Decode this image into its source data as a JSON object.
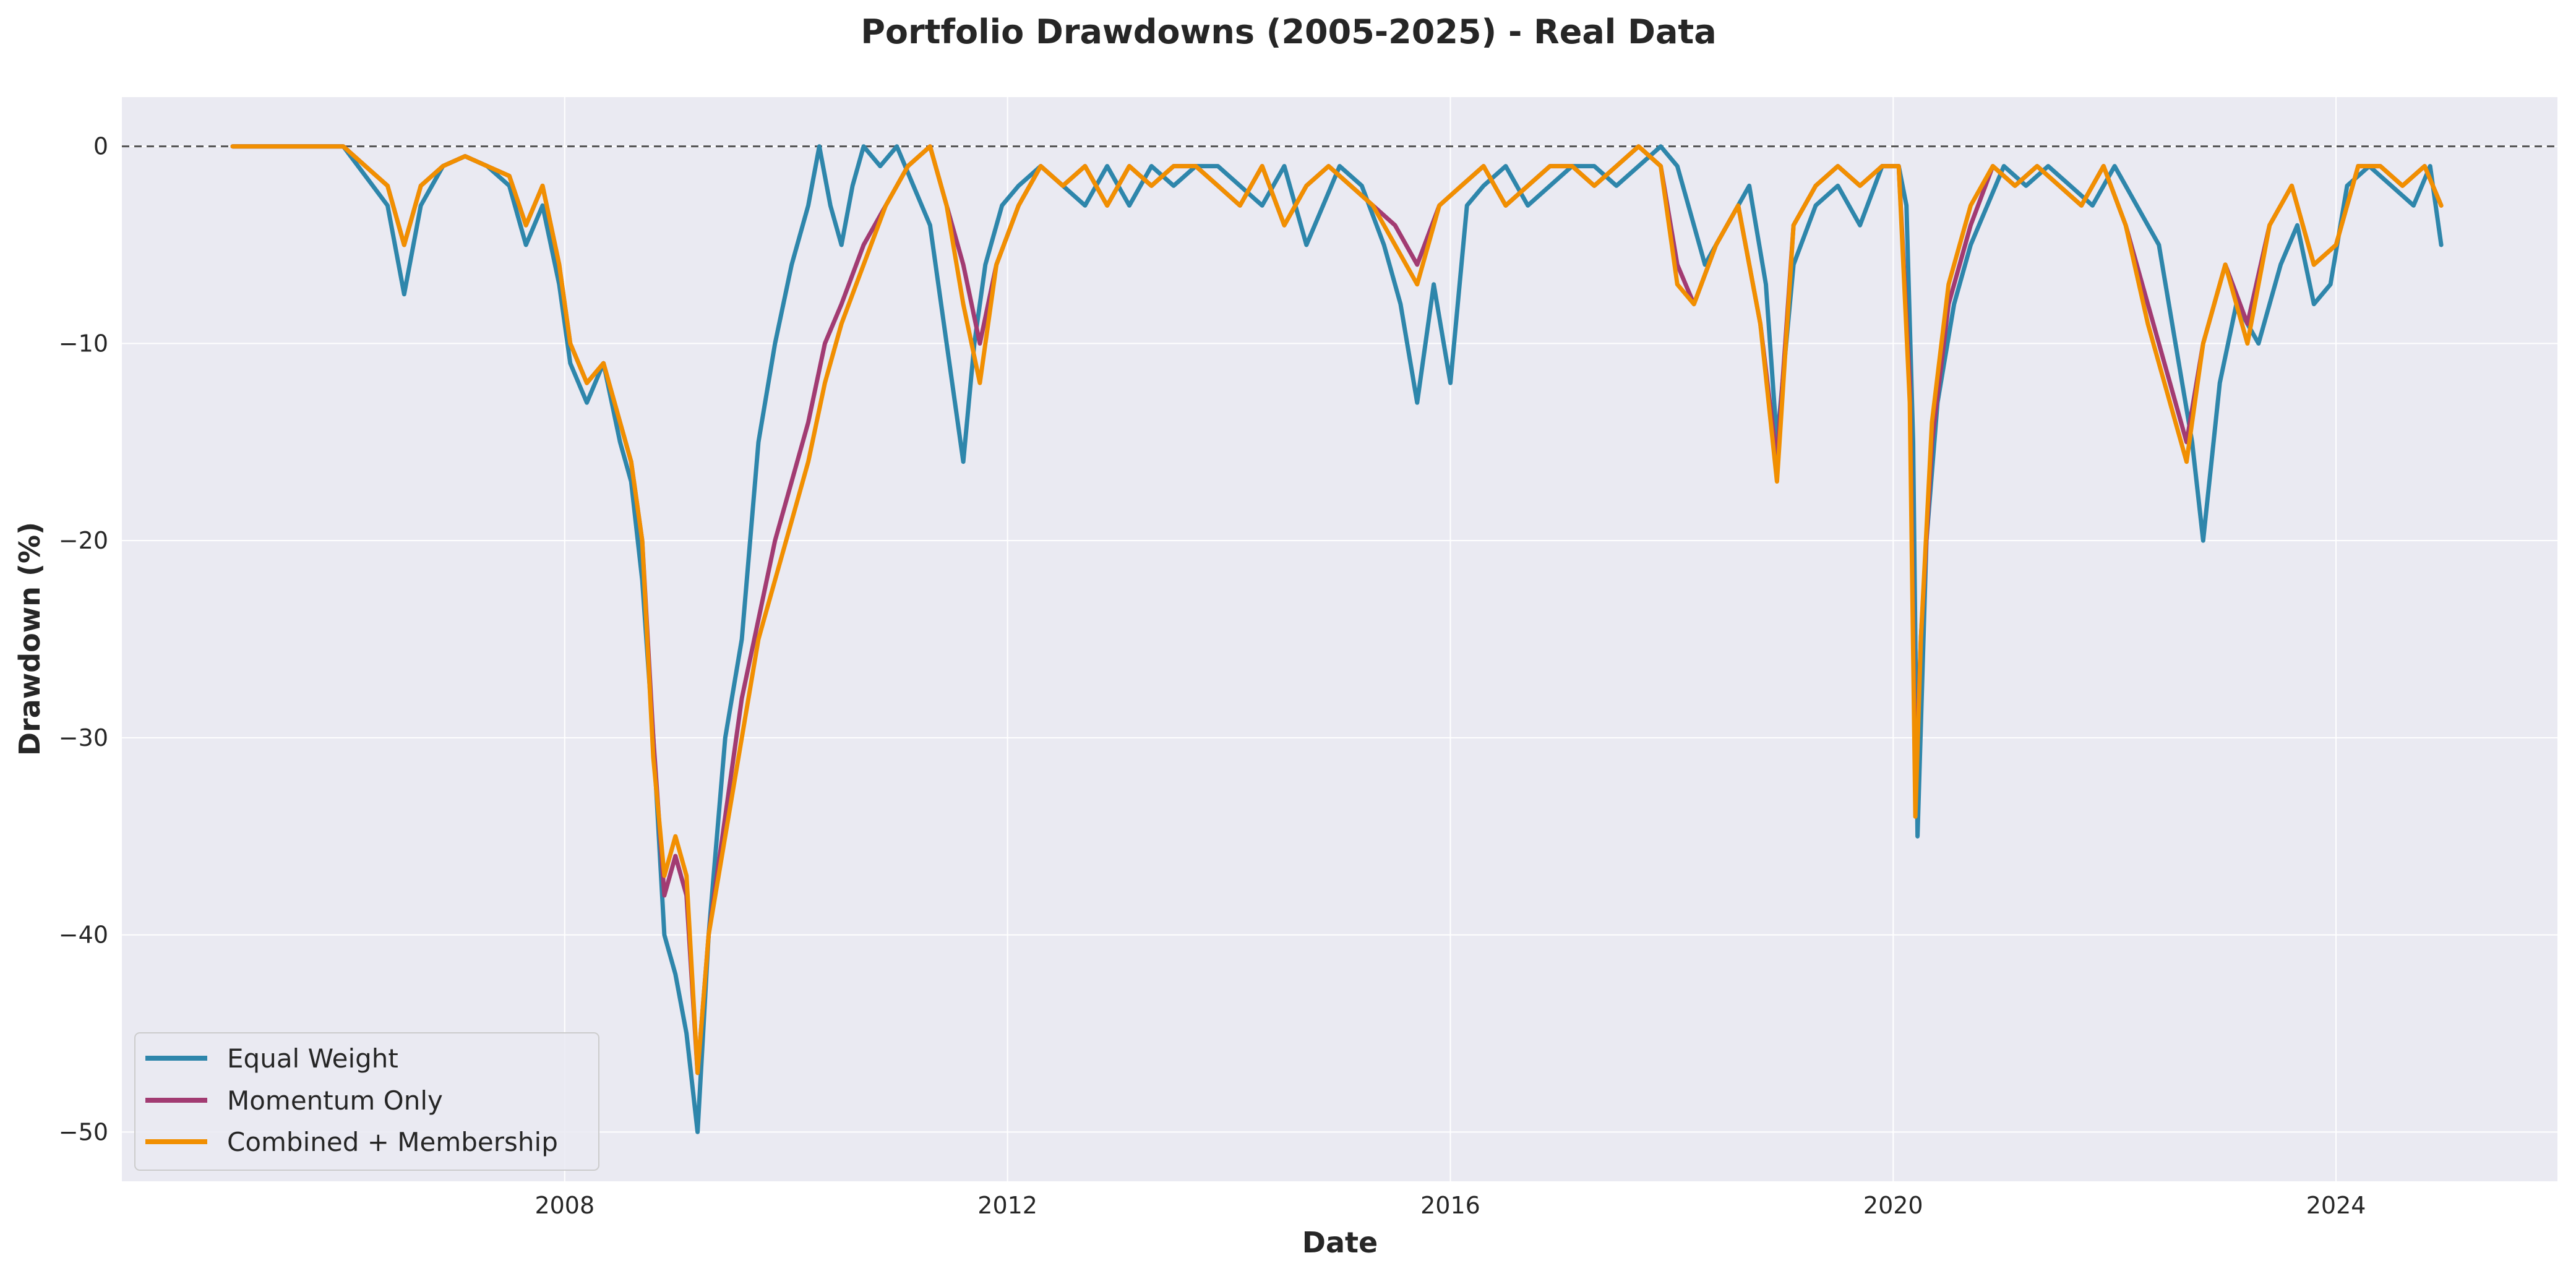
{
  "chart_data": {
    "type": "line",
    "title": "Portfolio Drawdowns (2005-2025) - Real Data",
    "xlabel": "Date",
    "ylabel": "Drawdown (%)",
    "xlim": [
      2004.0,
      2026.0
    ],
    "ylim": [
      -52.5,
      2.5
    ],
    "x_ticks": [
      2008,
      2012,
      2016,
      2020,
      2024
    ],
    "x_tick_labels": [
      "2008",
      "2012",
      "2016",
      "2020",
      "2024"
    ],
    "y_ticks": [
      0,
      -10,
      -20,
      -30,
      -40,
      -50
    ],
    "y_tick_labels": [
      "0",
      "−10",
      "−20",
      "−30",
      "−40",
      "−50"
    ],
    "grid": true,
    "zero_reference_line": 0,
    "legend_position": "lower-left",
    "colors": {
      "plot_background": "#eaeaf2",
      "grid": "#ffffff",
      "equal_weight": "#2e86ab",
      "momentum_only": "#a23b72",
      "combined_membership": "#f18f01"
    },
    "series": [
      {
        "name": "Equal Weight",
        "color": "#2e86ab",
        "x": [
          2005.0,
          2005.5,
          2006.0,
          2006.2,
          2006.4,
          2006.55,
          2006.7,
          2006.9,
          2007.1,
          2007.3,
          2007.5,
          2007.65,
          2007.8,
          2007.95,
          2008.05,
          2008.2,
          2008.35,
          2008.5,
          2008.6,
          2008.7,
          2008.8,
          2008.9,
          2009.0,
          2009.1,
          2009.2,
          2009.3,
          2009.45,
          2009.6,
          2009.75,
          2009.9,
          2010.05,
          2010.2,
          2010.3,
          2010.4,
          2010.5,
          2010.6,
          2010.7,
          2010.85,
          2011.0,
          2011.15,
          2011.3,
          2011.45,
          2011.6,
          2011.7,
          2011.8,
          2011.95,
          2012.1,
          2012.3,
          2012.5,
          2012.7,
          2012.9,
          2013.1,
          2013.3,
          2013.5,
          2013.7,
          2013.9,
          2014.1,
          2014.3,
          2014.5,
          2014.7,
          2014.85,
          2015.0,
          2015.2,
          2015.4,
          2015.55,
          2015.7,
          2015.85,
          2016.0,
          2016.15,
          2016.3,
          2016.5,
          2016.7,
          2016.9,
          2017.1,
          2017.3,
          2017.5,
          2017.7,
          2017.9,
          2018.05,
          2018.15,
          2018.3,
          2018.5,
          2018.7,
          2018.85,
          2018.95,
          2019.1,
          2019.3,
          2019.5,
          2019.7,
          2019.9,
          2020.05,
          2020.12,
          2020.18,
          2020.22,
          2020.3,
          2020.4,
          2020.55,
          2020.7,
          2020.85,
          2021.0,
          2021.2,
          2021.4,
          2021.6,
          2021.8,
          2022.0,
          2022.2,
          2022.4,
          2022.55,
          2022.7,
          2022.8,
          2022.95,
          2023.1,
          2023.3,
          2023.5,
          2023.65,
          2023.8,
          2023.95,
          2024.1,
          2024.3,
          2024.5,
          2024.7,
          2024.85,
          2024.95
        ],
        "y": [
          0,
          0,
          0,
          -1.5,
          -3,
          -7.5,
          -3,
          -1,
          -0.5,
          -1,
          -2,
          -5,
          -3,
          -7,
          -11,
          -13,
          -11,
          -15,
          -17,
          -22,
          -30,
          -40,
          -42,
          -45,
          -50,
          -40,
          -30,
          -25,
          -15,
          -10,
          -6,
          -3,
          0,
          -3,
          -5,
          -2,
          0,
          -1,
          0,
          -2,
          -4,
          -10,
          -16,
          -10,
          -6,
          -3,
          -2,
          -1,
          -2,
          -3,
          -1,
          -3,
          -1,
          -2,
          -1,
          -1,
          -2,
          -3,
          -1,
          -5,
          -3,
          -1,
          -2,
          -5,
          -8,
          -13,
          -7,
          -12,
          -3,
          -2,
          -1,
          -3,
          -2,
          -1,
          -1,
          -2,
          -1,
          0,
          -1,
          -3,
          -6,
          -4,
          -2,
          -7,
          -15,
          -6,
          -3,
          -2,
          -4,
          -1,
          -1,
          -3,
          -15,
          -35,
          -20,
          -13,
          -8,
          -5,
          -3,
          -1,
          -2,
          -1,
          -2,
          -3,
          -1,
          -3,
          -5,
          -10,
          -15,
          -20,
          -12,
          -8,
          -10,
          -6,
          -4,
          -8,
          -7,
          -2,
          -1,
          -2,
          -3,
          -1,
          -5
        ]
      },
      {
        "name": "Momentum Only",
        "color": "#a23b72",
        "x": [
          2005.0,
          2005.5,
          2006.0,
          2006.2,
          2006.4,
          2006.55,
          2006.7,
          2006.9,
          2007.1,
          2007.3,
          2007.5,
          2007.65,
          2007.8,
          2007.95,
          2008.05,
          2008.2,
          2008.35,
          2008.5,
          2008.6,
          2008.7,
          2008.8,
          2008.9,
          2009.0,
          2009.1,
          2009.2,
          2009.3,
          2009.45,
          2009.6,
          2009.75,
          2009.9,
          2010.05,
          2010.2,
          2010.35,
          2010.5,
          2010.7,
          2010.9,
          2011.1,
          2011.3,
          2011.45,
          2011.6,
          2011.75,
          2011.9,
          2012.1,
          2012.3,
          2012.5,
          2012.7,
          2012.9,
          2013.1,
          2013.3,
          2013.5,
          2013.7,
          2013.9,
          2014.1,
          2014.3,
          2014.5,
          2014.7,
          2014.9,
          2015.1,
          2015.3,
          2015.5,
          2015.7,
          2015.9,
          2016.1,
          2016.3,
          2016.5,
          2016.7,
          2016.9,
          2017.1,
          2017.3,
          2017.5,
          2017.7,
          2017.9,
          2018.05,
          2018.2,
          2018.4,
          2018.6,
          2018.8,
          2018.95,
          2019.1,
          2019.3,
          2019.5,
          2019.7,
          2019.9,
          2020.05,
          2020.15,
          2020.2,
          2020.25,
          2020.35,
          2020.5,
          2020.7,
          2020.9,
          2021.1,
          2021.3,
          2021.5,
          2021.7,
          2021.9,
          2022.1,
          2022.3,
          2022.5,
          2022.65,
          2022.8,
          2023.0,
          2023.2,
          2023.4,
          2023.6,
          2023.8,
          2024.0,
          2024.2,
          2024.4,
          2024.6,
          2024.8,
          2024.95
        ],
        "y": [
          0,
          0,
          0,
          -1,
          -2,
          -5,
          -2,
          -1,
          -0.5,
          -1,
          -1.5,
          -4,
          -2,
          -6,
          -10,
          -12,
          -11,
          -14,
          -16,
          -20,
          -30,
          -38,
          -36,
          -38,
          -47,
          -40,
          -34,
          -28,
          -24,
          -20,
          -17,
          -14,
          -10,
          -8,
          -5,
          -3,
          -1,
          0,
          -3,
          -6,
          -10,
          -6,
          -3,
          -1,
          -2,
          -1,
          -3,
          -1,
          -2,
          -1,
          -1,
          -2,
          -3,
          -1,
          -4,
          -2,
          -1,
          -2,
          -3,
          -4,
          -6,
          -3,
          -2,
          -1,
          -3,
          -2,
          -1,
          -1,
          -2,
          -1,
          0,
          -1,
          -6,
          -8,
          -5,
          -3,
          -9,
          -16,
          -4,
          -2,
          -1,
          -2,
          -1,
          -1,
          -12,
          -33,
          -25,
          -15,
          -8,
          -4,
          -1,
          -2,
          -1,
          -2,
          -3,
          -1,
          -4,
          -8,
          -12,
          -15,
          -10,
          -6,
          -9,
          -4,
          -2,
          -6,
          -5,
          -1,
          -1,
          -2,
          -1,
          -3
        ]
      },
      {
        "name": "Combined + Membership",
        "color": "#f18f01",
        "x": [
          2005.0,
          2005.5,
          2006.0,
          2006.2,
          2006.4,
          2006.55,
          2006.7,
          2006.9,
          2007.1,
          2007.3,
          2007.5,
          2007.65,
          2007.8,
          2007.95,
          2008.05,
          2008.2,
          2008.35,
          2008.5,
          2008.6,
          2008.7,
          2008.8,
          2008.9,
          2009.0,
          2009.1,
          2009.2,
          2009.3,
          2009.45,
          2009.6,
          2009.75,
          2009.9,
          2010.05,
          2010.2,
          2010.35,
          2010.5,
          2010.7,
          2010.9,
          2011.1,
          2011.3,
          2011.45,
          2011.6,
          2011.75,
          2011.9,
          2012.1,
          2012.3,
          2012.5,
          2012.7,
          2012.9,
          2013.1,
          2013.3,
          2013.5,
          2013.7,
          2013.9,
          2014.1,
          2014.3,
          2014.5,
          2014.7,
          2014.9,
          2015.1,
          2015.3,
          2015.5,
          2015.7,
          2015.9,
          2016.1,
          2016.3,
          2016.5,
          2016.7,
          2016.9,
          2017.1,
          2017.3,
          2017.5,
          2017.7,
          2017.9,
          2018.05,
          2018.2,
          2018.4,
          2018.6,
          2018.8,
          2018.95,
          2019.1,
          2019.3,
          2019.5,
          2019.7,
          2019.9,
          2020.05,
          2020.15,
          2020.2,
          2020.25,
          2020.35,
          2020.5,
          2020.7,
          2020.9,
          2021.1,
          2021.3,
          2021.5,
          2021.7,
          2021.9,
          2022.1,
          2022.3,
          2022.5,
          2022.65,
          2022.8,
          2023.0,
          2023.2,
          2023.4,
          2023.6,
          2023.8,
          2024.0,
          2024.2,
          2024.4,
          2024.6,
          2024.8,
          2024.95
        ],
        "y": [
          0,
          0,
          0,
          -1,
          -2,
          -5,
          -2,
          -1,
          -0.5,
          -1,
          -1.5,
          -4,
          -2,
          -6,
          -10,
          -12,
          -11,
          -14,
          -16,
          -20,
          -31,
          -37,
          -35,
          -37,
          -47,
          -40,
          -35,
          -30,
          -25,
          -22,
          -19,
          -16,
          -12,
          -9,
          -6,
          -3,
          -1,
          0,
          -3,
          -8,
          -12,
          -6,
          -3,
          -1,
          -2,
          -1,
          -3,
          -1,
          -2,
          -1,
          -1,
          -2,
          -3,
          -1,
          -4,
          -2,
          -1,
          -2,
          -3,
          -5,
          -7,
          -3,
          -2,
          -1,
          -3,
          -2,
          -1,
          -1,
          -2,
          -1,
          0,
          -1,
          -7,
          -8,
          -5,
          -3,
          -9,
          -17,
          -4,
          -2,
          -1,
          -2,
          -1,
          -1,
          -13,
          -34,
          -25,
          -14,
          -7,
          -3,
          -1,
          -2,
          -1,
          -2,
          -3,
          -1,
          -4,
          -9,
          -13,
          -16,
          -10,
          -6,
          -10,
          -4,
          -2,
          -6,
          -5,
          -1,
          -1,
          -2,
          -1,
          -3
        ]
      }
    ]
  }
}
